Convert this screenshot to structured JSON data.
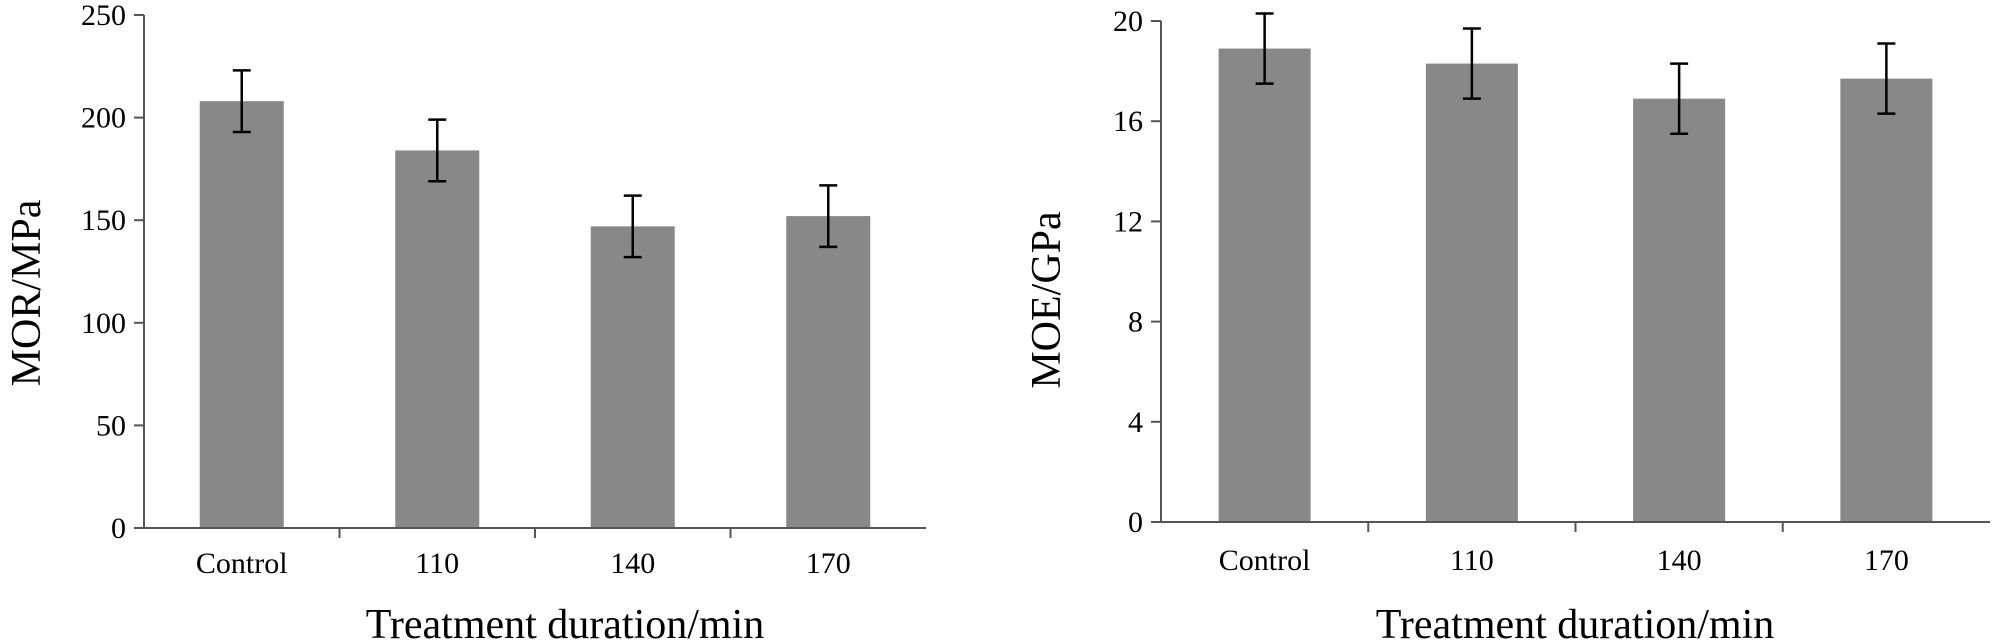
{
  "chart_data": [
    {
      "type": "bar",
      "categories": [
        "Control",
        "110",
        "140",
        "170"
      ],
      "values": [
        208,
        184,
        147,
        152
      ],
      "errors": [
        15,
        15,
        15,
        15
      ],
      "xlabel": "Treatment duration/min",
      "ylabel": "MOR/MPa",
      "ylim": [
        0,
        250
      ],
      "yticks": [
        "0",
        "50",
        "100",
        "150",
        "200",
        "250"
      ],
      "bar_color": "#888888",
      "grid": false
    },
    {
      "type": "bar",
      "categories": [
        "Control",
        "110",
        "140",
        "170"
      ],
      "values": [
        18.9,
        18.3,
        16.9,
        17.7
      ],
      "errors": [
        1.4,
        1.4,
        1.4,
        1.4
      ],
      "xlabel": "Treatment duration/min",
      "ylabel": "MOE/GPa",
      "ylim": [
        0,
        20
      ],
      "yticks": [
        "0",
        "4",
        "8",
        "12",
        "16",
        "20"
      ],
      "bar_color": "#888888",
      "grid": false
    }
  ]
}
